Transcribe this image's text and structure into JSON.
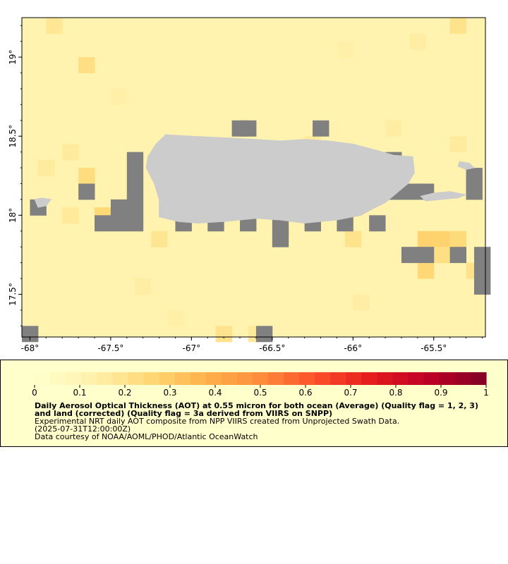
{
  "map": {
    "region": "Puerto Rico",
    "lon_range": [
      -68.05,
      -65.18
    ],
    "lat_range": [
      17.23,
      19.25
    ],
    "cell_size_deg": 0.1,
    "background_value": 0.12,
    "lon_ticks": [
      {
        "value": -68,
        "label": "-68°"
      },
      {
        "value": -67.5,
        "label": "-67.5°"
      },
      {
        "value": -67,
        "label": "-67°"
      },
      {
        "value": -66.5,
        "label": "-66.5°"
      },
      {
        "value": -66,
        "label": "-66°"
      },
      {
        "value": -65.5,
        "label": "-65.5°"
      }
    ],
    "lat_ticks": [
      {
        "value": 19,
        "label": "19°"
      },
      {
        "value": 18.5,
        "label": "18.5°"
      },
      {
        "value": 18,
        "label": "18°"
      },
      {
        "value": 17.5,
        "label": "17.5°"
      }
    ],
    "colors": {
      "land": "#cccccc",
      "no_data": "#808080",
      "frame": "#000000"
    },
    "aot_cells": [
      [
        -67.85,
        19.2,
        0.18
      ],
      [
        -65.35,
        19.2,
        0.2
      ],
      [
        -67.65,
        18.95,
        0.22
      ],
      [
        -66.05,
        19.05,
        0.14
      ],
      [
        -65.6,
        19.1,
        0.15
      ],
      [
        -67.75,
        18.4,
        0.16
      ],
      [
        -67.65,
        18.25,
        0.23
      ],
      [
        -67.55,
        18.0,
        0.25
      ],
      [
        -67.75,
        18.0,
        0.17
      ],
      [
        -67.9,
        18.3,
        0.16
      ],
      [
        -67.2,
        17.85,
        0.19
      ],
      [
        -66.0,
        17.85,
        0.2
      ],
      [
        -65.55,
        17.85,
        0.27
      ],
      [
        -65.45,
        17.85,
        0.27
      ],
      [
        -65.35,
        17.85,
        0.24
      ],
      [
        -65.55,
        17.65,
        0.25
      ],
      [
        -65.45,
        17.75,
        0.22
      ],
      [
        -65.25,
        17.65,
        0.2
      ],
      [
        -66.8,
        17.25,
        0.2
      ],
      [
        -66.6,
        17.25,
        0.17
      ],
      [
        -65.95,
        17.45,
        0.15
      ],
      [
        -67.45,
        18.75,
        0.14
      ],
      [
        -66.25,
        18.45,
        0.17
      ],
      [
        -65.75,
        18.55,
        0.15
      ],
      [
        -65.35,
        18.45,
        0.16
      ],
      [
        -67.3,
        17.55,
        0.15
      ],
      [
        -67.1,
        17.35,
        0.14
      ]
    ],
    "no_data_cells": [
      [
        -66.7,
        18.55
      ],
      [
        -66.65,
        18.55
      ],
      [
        -66.2,
        18.55
      ],
      [
        -67.35,
        18.35
      ],
      [
        -67.35,
        18.25
      ],
      [
        -67.35,
        18.15
      ],
      [
        -67.35,
        18.05
      ],
      [
        -67.45,
        18.05
      ],
      [
        -67.55,
        17.95
      ],
      [
        -67.45,
        17.95
      ],
      [
        -67.35,
        17.95
      ],
      [
        -67.05,
        17.95
      ],
      [
        -66.85,
        17.95
      ],
      [
        -66.65,
        17.95
      ],
      [
        -66.45,
        17.95
      ],
      [
        -66.25,
        17.95
      ],
      [
        -66.05,
        17.95
      ],
      [
        -65.85,
        17.95
      ],
      [
        -66.45,
        17.85
      ],
      [
        -67.65,
        18.15
      ],
      [
        -67.95,
        18.05
      ],
      [
        -65.75,
        18.15
      ],
      [
        -65.65,
        18.15
      ],
      [
        -65.55,
        18.15
      ],
      [
        -65.75,
        18.35
      ],
      [
        -65.75,
        18.25
      ],
      [
        -65.25,
        18.25
      ],
      [
        -65.25,
        18.15
      ],
      [
        -65.65,
        17.75
      ],
      [
        -65.55,
        17.75
      ],
      [
        -65.35,
        17.75
      ],
      [
        -65.2,
        17.75
      ],
      [
        -65.2,
        17.65
      ],
      [
        -65.2,
        17.55
      ],
      [
        -68.0,
        17.25
      ],
      [
        -66.55,
        17.25
      ]
    ],
    "land_polygons": [
      {
        "name": "main-island",
        "coords": [
          [
            -67.27,
            18.37
          ],
          [
            -67.22,
            18.45
          ],
          [
            -67.16,
            18.51
          ],
          [
            -67.0,
            18.5
          ],
          [
            -66.8,
            18.49
          ],
          [
            -66.6,
            18.48
          ],
          [
            -66.45,
            18.47
          ],
          [
            -66.3,
            18.48
          ],
          [
            -66.15,
            18.47
          ],
          [
            -66.0,
            18.45
          ],
          [
            -65.85,
            18.41
          ],
          [
            -65.75,
            18.38
          ],
          [
            -65.63,
            18.37
          ],
          [
            -65.62,
            18.27
          ],
          [
            -65.66,
            18.2
          ],
          [
            -65.73,
            18.14
          ],
          [
            -65.8,
            18.08
          ],
          [
            -65.88,
            18.04
          ],
          [
            -65.95,
            18.0
          ],
          [
            -66.1,
            17.97
          ],
          [
            -66.3,
            17.95
          ],
          [
            -66.45,
            17.97
          ],
          [
            -66.6,
            17.98
          ],
          [
            -66.8,
            17.96
          ],
          [
            -66.96,
            17.95
          ],
          [
            -67.08,
            17.96
          ],
          [
            -67.2,
            17.99
          ],
          [
            -67.2,
            18.1
          ],
          [
            -67.23,
            18.2
          ],
          [
            -67.28,
            18.3
          ]
        ]
      },
      {
        "name": "vieques",
        "coords": [
          [
            -65.58,
            18.12
          ],
          [
            -65.5,
            18.14
          ],
          [
            -65.4,
            18.15
          ],
          [
            -65.3,
            18.13
          ],
          [
            -65.35,
            18.11
          ],
          [
            -65.45,
            18.1
          ],
          [
            -65.55,
            18.09
          ]
        ]
      },
      {
        "name": "culebra",
        "coords": [
          [
            -65.34,
            18.34
          ],
          [
            -65.28,
            18.33
          ],
          [
            -65.25,
            18.3
          ],
          [
            -65.3,
            18.29
          ],
          [
            -65.35,
            18.31
          ]
        ]
      },
      {
        "name": "mona",
        "coords": [
          [
            -67.97,
            18.1
          ],
          [
            -67.93,
            18.11
          ],
          [
            -67.87,
            18.1
          ],
          [
            -67.9,
            18.06
          ],
          [
            -67.95,
            18.05
          ]
        ]
      }
    ]
  },
  "legend": {
    "vmin": 0,
    "vmax": 1,
    "bin_count": 29,
    "ticks": [
      "0",
      "0.1",
      "0.2",
      "0.3",
      "0.4",
      "0.5",
      "0.6",
      "0.7",
      "0.8",
      "0.9",
      "1"
    ],
    "colormap": [
      "#ffffcc",
      "#fff2ae",
      "#fed976",
      "#feb24c",
      "#fd8d3c",
      "#fc4e2a",
      "#e31a1c",
      "#bd0026",
      "#800026"
    ],
    "title": "Daily Aerosol Optical Thickness (AOT) at 0.55 micron for both ocean (Average) (Quality flag = 1, 2, 3) and land (corrected) (Quality flag = 3a derived from VIIRS on SNPP)",
    "subtitle": "Experimental NRT daily AOT composite from NPP VIIRS created from Unprojected Swath Data.",
    "timestamp": "(2025-07-31T12:00:00Z)",
    "credit": "Data courtesy of NOAA/AOML/PHOD/Atlantic OceanWatch"
  }
}
